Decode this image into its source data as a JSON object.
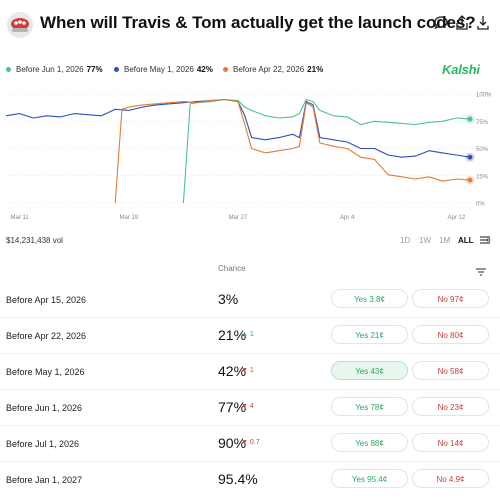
{
  "header": {
    "title": "When will Travis & Tom actually get the launch codes?",
    "icons": [
      "comment-icon",
      "share-icon",
      "download-icon"
    ]
  },
  "legend": [
    {
      "label": "Before Jun 1, 2026",
      "value": "77%",
      "color": "#4cc28a"
    },
    {
      "label": "Before May 1, 2026",
      "value": "42%",
      "color": "#2f4fb5"
    },
    {
      "label": "Before Apr 22, 2026",
      "value": "21%",
      "color": "#e07b39"
    }
  ],
  "brand": "Kalshi",
  "chart_data": {
    "type": "line",
    "x_ticks": [
      "Mar 11",
      "Mar 19",
      "Mar 27",
      "Apr 4",
      "Apr 12"
    ],
    "y_ticks": [
      "100%",
      "75%",
      "50%",
      "25%",
      "0%"
    ],
    "ylim": [
      0,
      100
    ],
    "grid": true,
    "series": [
      {
        "name": "Before Jun 1, 2026",
        "color": "#4cc28a",
        "values": [
          [
            23,
            0
          ],
          [
            23.5,
            91
          ],
          [
            24,
            92
          ],
          [
            25,
            93
          ],
          [
            26,
            95
          ],
          [
            27,
            94
          ],
          [
            27.5,
            88
          ],
          [
            28,
            85
          ],
          [
            29,
            80
          ],
          [
            30,
            78
          ],
          [
            31,
            79
          ],
          [
            31.5,
            82
          ],
          [
            32,
            95
          ],
          [
            32.5,
            93
          ],
          [
            33,
            85
          ],
          [
            34,
            80
          ],
          [
            35,
            79
          ],
          [
            36,
            72
          ],
          [
            37,
            75
          ],
          [
            38,
            74
          ],
          [
            39,
            73
          ],
          [
            40,
            72
          ],
          [
            41,
            74
          ],
          [
            42,
            75
          ],
          [
            43,
            78
          ],
          [
            44,
            77
          ]
        ]
      },
      {
        "name": "Before May 1, 2026",
        "color": "#2f4fb5",
        "values": [
          [
            10,
            80
          ],
          [
            11,
            82
          ],
          [
            12,
            78
          ],
          [
            13,
            80
          ],
          [
            14,
            79
          ],
          [
            15,
            82
          ],
          [
            16,
            81
          ],
          [
            17,
            80
          ],
          [
            18,
            86
          ],
          [
            19,
            85
          ],
          [
            20,
            88
          ],
          [
            21,
            90
          ],
          [
            22,
            91
          ],
          [
            23,
            92
          ],
          [
            24,
            93
          ],
          [
            25,
            94
          ],
          [
            26,
            95
          ],
          [
            27,
            93
          ],
          [
            27.5,
            80
          ],
          [
            28,
            60
          ],
          [
            29,
            58
          ],
          [
            30,
            60
          ],
          [
            31,
            63
          ],
          [
            31.5,
            60
          ],
          [
            32,
            93
          ],
          [
            32.5,
            90
          ],
          [
            33,
            60
          ],
          [
            34,
            58
          ],
          [
            35,
            56
          ],
          [
            36,
            50
          ],
          [
            37,
            50
          ],
          [
            38,
            44
          ],
          [
            39,
            42
          ],
          [
            40,
            43
          ],
          [
            41,
            48
          ],
          [
            42,
            46
          ],
          [
            43,
            44
          ],
          [
            44,
            42
          ]
        ]
      },
      {
        "name": "Before Apr 22, 2026",
        "color": "#e07b39",
        "values": [
          [
            18,
            0
          ],
          [
            18.5,
            86
          ],
          [
            19,
            88
          ],
          [
            20,
            90
          ],
          [
            21,
            91
          ],
          [
            22,
            92
          ],
          [
            23,
            93
          ],
          [
            24,
            92
          ],
          [
            25,
            94
          ],
          [
            26,
            95
          ],
          [
            27,
            93
          ],
          [
            27.5,
            72
          ],
          [
            28,
            50
          ],
          [
            29,
            46
          ],
          [
            30,
            48
          ],
          [
            31,
            50
          ],
          [
            31.5,
            52
          ],
          [
            32,
            92
          ],
          [
            32.5,
            88
          ],
          [
            33,
            55
          ],
          [
            34,
            52
          ],
          [
            35,
            50
          ],
          [
            36,
            42
          ],
          [
            37,
            40
          ],
          [
            38,
            26
          ],
          [
            39,
            24
          ],
          [
            40,
            22
          ],
          [
            41,
            24
          ],
          [
            42,
            20
          ],
          [
            43,
            22
          ],
          [
            44,
            21
          ]
        ]
      }
    ]
  },
  "volume": "$14,231,438 vol",
  "ranges": [
    "1D",
    "1W",
    "1M",
    "ALL"
  ],
  "selected_range": "ALL",
  "table": {
    "column_header": "Chance",
    "rows": [
      {
        "label": "Before Apr 15, 2026",
        "chance": "3%",
        "delta": "",
        "delta_dir": "",
        "yes": "Yes 3.8¢",
        "no": "No 97¢",
        "yes_active": false
      },
      {
        "label": "Before Apr 22, 2026",
        "chance": "21%",
        "delta": "▲ 1",
        "delta_dir": "up",
        "yes": "Yes 21¢",
        "no": "No 80¢",
        "yes_active": false
      },
      {
        "label": "Before May 1, 2026",
        "chance": "42%",
        "delta": "▼ 1",
        "delta_dir": "down",
        "yes": "Yes 43¢",
        "no": "No 58¢",
        "yes_active": true
      },
      {
        "label": "Before Jun 1, 2026",
        "chance": "77%",
        "delta": "▼ 4",
        "delta_dir": "down",
        "yes": "Yes 78¢",
        "no": "No 23¢",
        "yes_active": false
      },
      {
        "label": "Before Jul 1, 2026",
        "chance": "90%",
        "delta": "▼ 0.7",
        "delta_dir": "down",
        "yes": "Yes 88¢",
        "no": "No 14¢",
        "yes_active": false
      },
      {
        "label": "Before Jan 1, 2027",
        "chance": "95.4%",
        "delta": "",
        "delta_dir": "",
        "yes": "Yes 95.4¢",
        "no": "No 4.9¢",
        "yes_active": false
      }
    ]
  }
}
